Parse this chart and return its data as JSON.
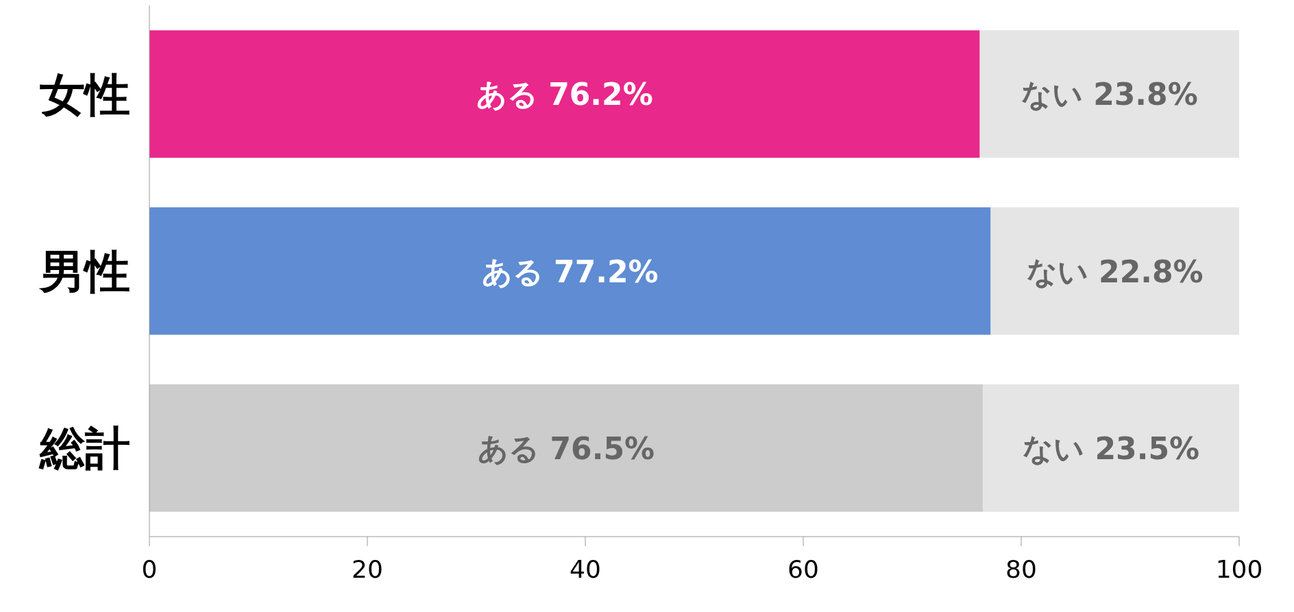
{
  "chart_data": {
    "type": "bar",
    "orientation": "horizontal",
    "stacked": true,
    "categories": [
      "女性",
      "男性",
      "総計"
    ],
    "series": [
      {
        "name": "ある",
        "colors": [
          "#e8288a",
          "#5f8cd2",
          "#cccccc"
        ],
        "values": [
          76.2,
          77.2,
          76.5
        ],
        "value_labels": [
          "76.2%",
          "77.2%",
          "76.5%"
        ]
      },
      {
        "name": "ない",
        "color": "#e5e5e5",
        "values": [
          23.8,
          22.8,
          23.5
        ],
        "value_labels": [
          "23.8%",
          "22.8%",
          "23.5%"
        ]
      }
    ],
    "xlim": [
      0,
      100
    ],
    "xticks": [
      0,
      20,
      40,
      60,
      80,
      100
    ],
    "grid": false,
    "legend": false
  }
}
